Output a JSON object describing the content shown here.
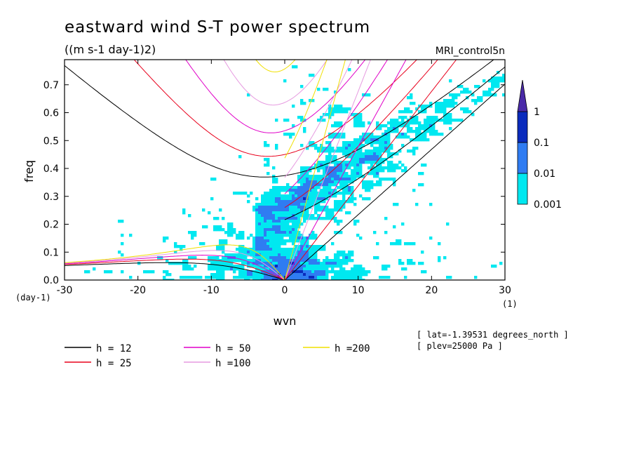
{
  "figure": {
    "title": "eastward wind S-T power spectrum",
    "units": "((m s-1 day-1)2)",
    "model": "MRI_control5n",
    "info": [
      "[ lat=-1.39531 degrees_north ]",
      "[ plev=25000 Pa ]"
    ]
  },
  "chart_data": {
    "type": "heatmap",
    "title": "eastward wind S-T power spectrum",
    "subtitle": "((m s-1 day-1)2)",
    "xlabel": "wvn",
    "ylabel": "freq",
    "x_unit_label": "(1)",
    "y_unit_label": "(day-1)",
    "xlim": [
      -30,
      30
    ],
    "ylim": [
      0,
      0.79
    ],
    "x_ticks": [
      -30,
      -20,
      -10,
      0,
      10,
      20,
      30
    ],
    "y_ticks": [
      0.0,
      0.1,
      0.2,
      0.3,
      0.4,
      0.5,
      0.6,
      0.7
    ],
    "x_tick_labels": [
      "-30",
      "-20",
      "-10",
      "0",
      "10",
      "20",
      "30"
    ],
    "y_tick_labels": [
      "0.0",
      "0.1",
      "0.2",
      "0.3",
      "0.4",
      "0.5",
      "0.6",
      "0.7"
    ],
    "colorbar": {
      "levels": [
        0.001,
        0.01,
        0.1,
        1
      ],
      "labels": [
        "0.001",
        "0.01",
        "0.1",
        "1"
      ],
      "colors": [
        "#00e8f0",
        "#2f7cf2",
        "#0a2bbd",
        "#4a2aa8"
      ]
    },
    "dispersion_curves": [
      {
        "label": "h = 12",
        "h": 12,
        "color": "#000000"
      },
      {
        "label": "h = 25",
        "h": 25,
        "color": "#e8001c"
      },
      {
        "label": "h = 50",
        "h": 50,
        "color": "#e000c8"
      },
      {
        "label": "h =100",
        "h": 100,
        "color": "#e69ae0"
      },
      {
        "label": "h =200",
        "h": 200,
        "color": "#f0e000"
      }
    ]
  }
}
